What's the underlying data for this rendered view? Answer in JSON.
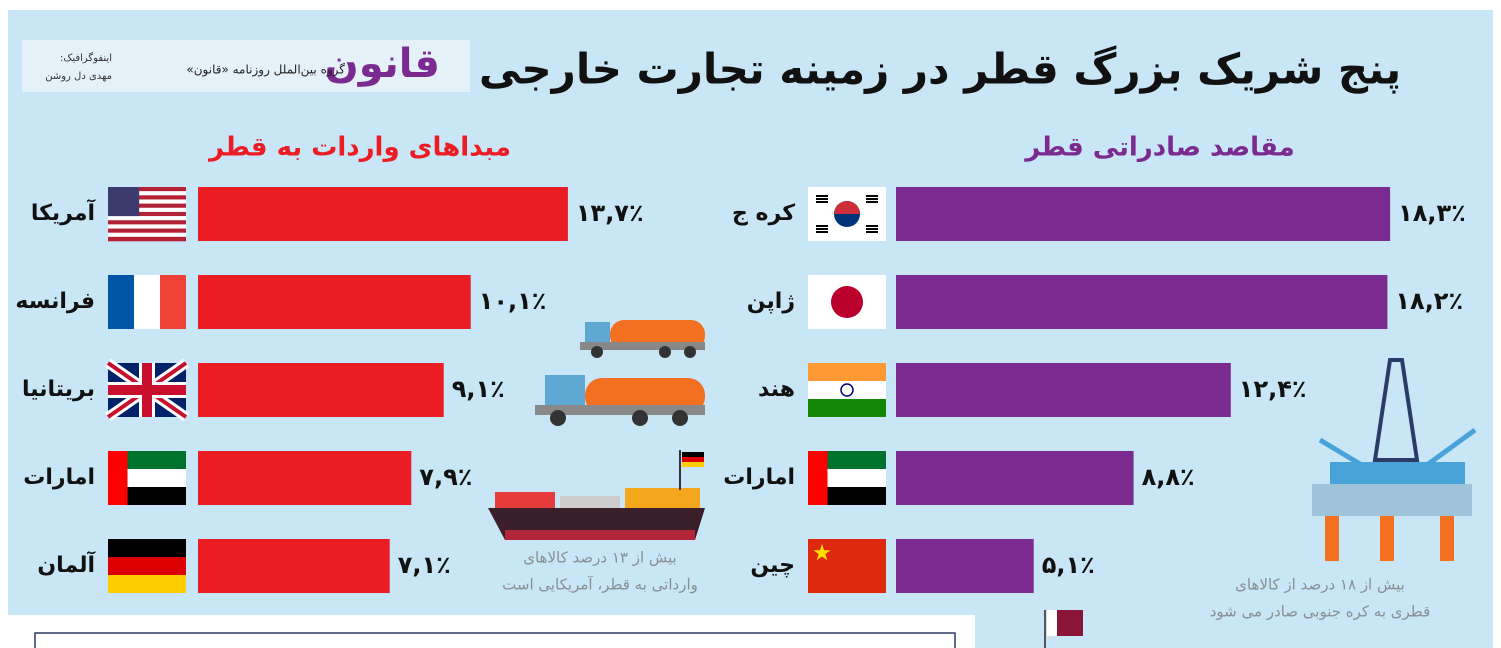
{
  "header": {
    "title": "پنج شریک بزرگ قطر در زمینه تجارت خارجی",
    "logo": "قانون",
    "subtitle": "گروه بین‌الملل روزنامه «قانون»",
    "credit": [
      "اینفوگرافیک:",
      "مهدی دل روشن"
    ]
  },
  "chart_data": [
    {
      "type": "bar",
      "orientation": "horizontal",
      "title": "مبداهای واردات به قطر",
      "color": "#ec1c24",
      "title_color": "#ec1c24",
      "categories": [
        "آمریکا",
        "فرانسه",
        "بریتانیا",
        "امارات",
        "آلمان"
      ],
      "values": [
        13.7,
        10.1,
        9.1,
        7.9,
        7.1
      ],
      "value_labels": [
        "۱۳,۷٪",
        "۱۰,۱٪",
        "۹,۱٪",
        "۷,۹٪",
        "۷,۱٪"
      ],
      "annotation": [
        "بیش از ۱۳ درصد کالاهای",
        "وارداتی به قطر، آمریکایی است"
      ]
    },
    {
      "type": "bar",
      "orientation": "horizontal",
      "title": "مقاصد صادراتی قطر",
      "color": "#7b2a8f",
      "title_color": "#7b2a8f",
      "categories": [
        "کره ج",
        "ژاپن",
        "هند",
        "امارات",
        "چین"
      ],
      "values": [
        18.3,
        18.2,
        12.4,
        8.8,
        5.1
      ],
      "value_labels": [
        "۱۸,۳٪",
        "۱۸,۲٪",
        "۱۲,۴٪",
        "۸,۸٪",
        "۵,۱٪"
      ],
      "annotation": [
        "بیش از ۱۸ درصد از کالاهای",
        "قطری به کره جنوبی صادر می شود"
      ]
    }
  ]
}
